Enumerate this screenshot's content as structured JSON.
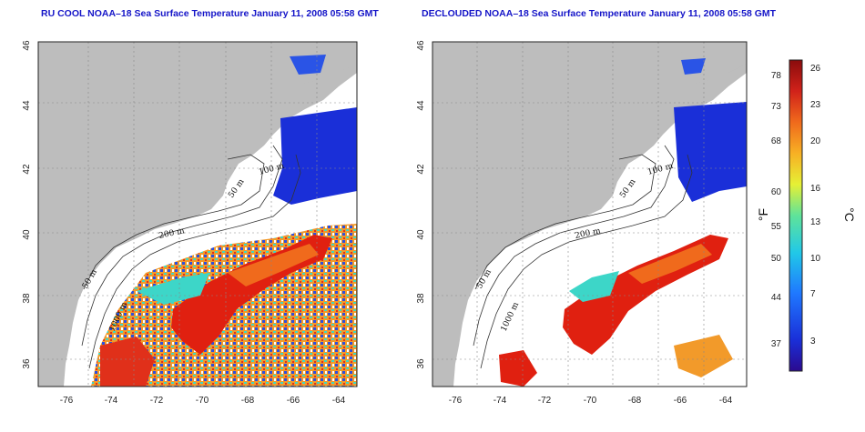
{
  "panels": [
    {
      "title": "RU COOL NOAA–18 Sea Surface Temperature January 11, 2008 05:58 GMT"
    },
    {
      "title": "DECLOUDED NOAA–18 Sea Surface Temperature January 11, 2008 05:58 GMT"
    }
  ],
  "map": {
    "lon_ticks": [
      "-76",
      "-74",
      "-72",
      "-70",
      "-68",
      "-66",
      "-64"
    ],
    "lat_ticks": [
      "36",
      "38",
      "40",
      "42",
      "44",
      "46"
    ],
    "contour_labels": [
      "50 m",
      "100 m",
      "200 m",
      "1000 m"
    ],
    "colors": {
      "land": "#bdbdbd",
      "ocean_cold": "#1a2fd8",
      "ocean_warm": "#e02010"
    }
  },
  "colorbar": {
    "f_label": "°F",
    "c_label": "°C",
    "f_ticks": [
      "78",
      "73",
      "68",
      "60",
      "55",
      "50",
      "44",
      "37"
    ],
    "c_ticks": [
      "26",
      "23",
      "20",
      "16",
      "13",
      "10",
      "7",
      "3"
    ],
    "gradient": [
      "#2b0a8f",
      "#1a2fd8",
      "#1f78ff",
      "#21c8e8",
      "#5fe39a",
      "#e6f035",
      "#f7b024",
      "#f06a1c",
      "#d1221a",
      "#8a0c0c"
    ]
  }
}
